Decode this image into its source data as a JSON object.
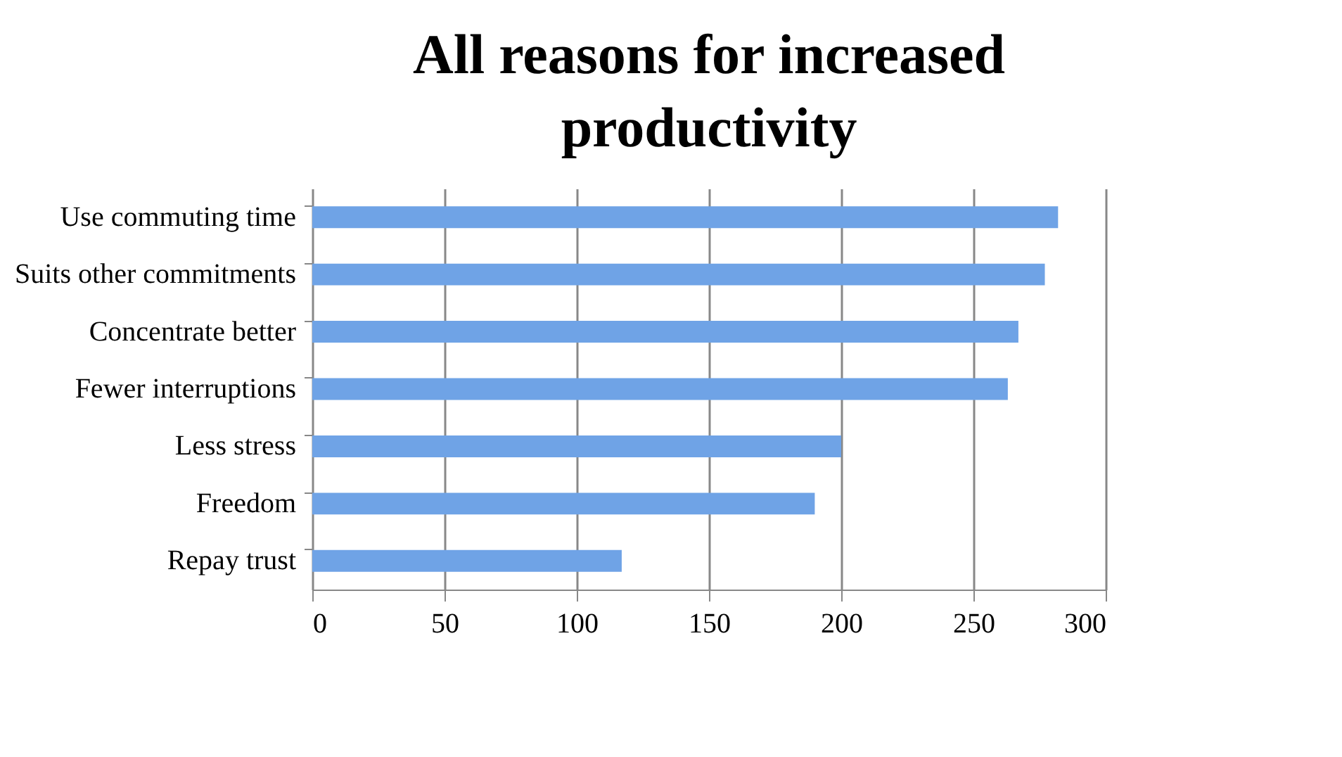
{
  "chart_data": {
    "type": "bar",
    "orientation": "horizontal",
    "title": "All reasons for increased productivity",
    "categories": [
      "Use commuting time",
      "Suits other commitments",
      "Concentrate better",
      "Fewer interruptions",
      "Less stress",
      "Freedom",
      "Repay trust"
    ],
    "values": [
      282,
      277,
      267,
      263,
      200,
      190,
      117
    ],
    "color": "#6fa3e6",
    "xlim": [
      0,
      300
    ],
    "xticks": [
      0,
      50,
      100,
      150,
      200,
      250,
      300
    ],
    "grid": "x"
  }
}
